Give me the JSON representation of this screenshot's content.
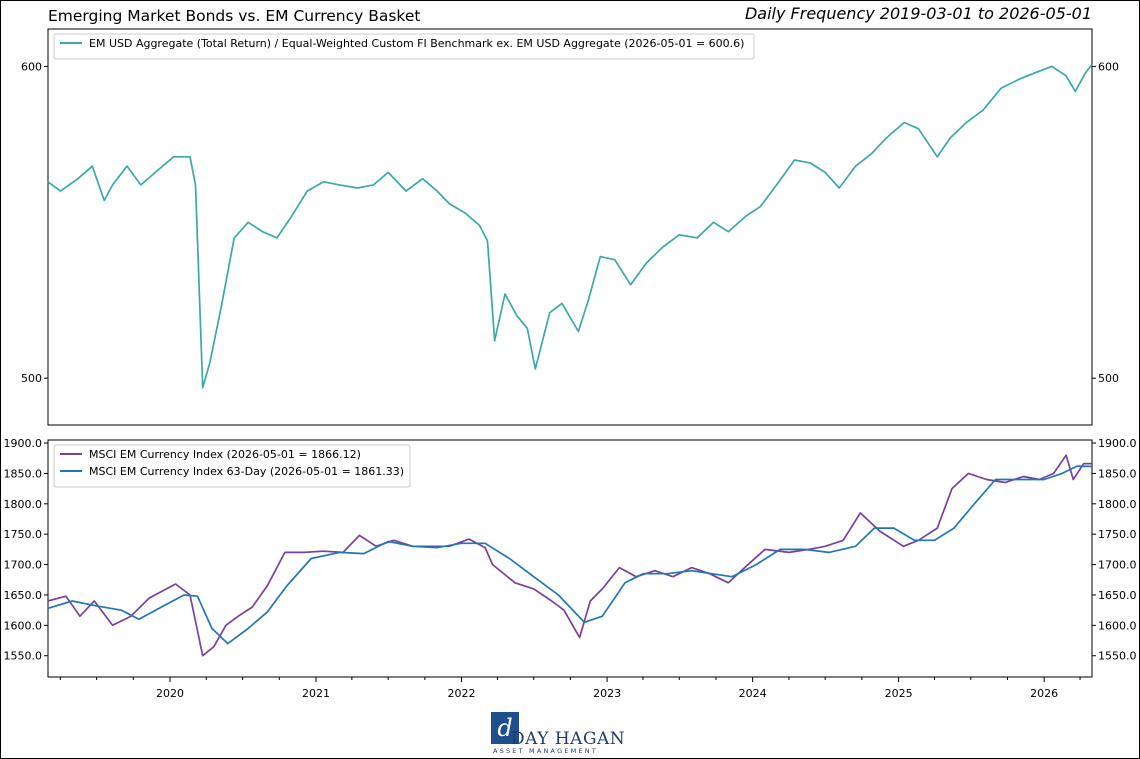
{
  "header": {
    "title": "Emerging Market Bonds vs. EM Currency Basket",
    "subtitle": "Daily Frequency 2019-03-01 to 2026-05-01"
  },
  "logo": {
    "mark": "d",
    "name": "DAY HAGAN",
    "tagline": "ASSET MANAGEMENT"
  },
  "chart_data": [
    {
      "type": "line",
      "panel": "top",
      "title": "",
      "xlabel": "",
      "ylabel": "",
      "xlim": [
        "2019-03-01",
        "2026-05-01"
      ],
      "ylim": [
        485,
        612
      ],
      "yticks": [
        500,
        600
      ],
      "ytick_labels": [
        "500",
        "600"
      ],
      "ytick_labels_right": true,
      "grid": false,
      "legend_position": "top-left",
      "series": [
        {
          "name": "EM USD Aggregate (Total Return) / Equal-Weighted Custom FI Benchmark ex. EM USD Aggregate (2026-05-01 = 600.6)",
          "color": "#3aa9a7",
          "x": [
            "2019-03-01",
            "2019-04-01",
            "2019-05-15",
            "2019-06-20",
            "2019-07-20",
            "2019-08-10",
            "2019-09-15",
            "2019-10-20",
            "2019-11-25",
            "2020-01-10",
            "2020-02-20",
            "2020-03-05",
            "2020-03-23",
            "2020-04-10",
            "2020-05-10",
            "2020-06-10",
            "2020-07-15",
            "2020-08-20",
            "2020-09-25",
            "2020-11-01",
            "2020-12-10",
            "2021-01-20",
            "2021-03-01",
            "2021-04-15",
            "2021-05-25",
            "2021-07-01",
            "2021-08-15",
            "2021-09-25",
            "2021-11-01",
            "2021-12-01",
            "2022-01-10",
            "2022-02-15",
            "2022-03-07",
            "2022-03-25",
            "2022-04-20",
            "2022-05-20",
            "2022-06-15",
            "2022-07-05",
            "2022-08-10",
            "2022-09-10",
            "2022-10-21",
            "2022-11-15",
            "2022-12-15",
            "2023-01-20",
            "2023-03-01",
            "2023-04-10",
            "2023-05-20",
            "2023-07-01",
            "2023-08-15",
            "2023-09-25",
            "2023-11-01",
            "2023-12-15",
            "2024-01-20",
            "2024-03-01",
            "2024-04-15",
            "2024-05-25",
            "2024-07-01",
            "2024-08-05",
            "2024-09-15",
            "2024-10-25",
            "2024-12-01",
            "2025-01-15",
            "2025-02-20",
            "2025-04-08",
            "2025-05-10",
            "2025-06-20",
            "2025-08-01",
            "2025-09-15",
            "2025-11-01",
            "2025-12-10",
            "2026-01-20",
            "2026-02-25",
            "2026-03-20",
            "2026-04-15",
            "2026-05-01"
          ],
          "values": [
            563,
            560,
            564,
            568,
            557,
            562,
            568,
            562,
            566,
            571,
            571,
            562,
            497,
            505,
            524,
            545,
            550,
            547,
            545,
            552,
            560,
            563,
            562,
            561,
            562,
            566,
            560,
            564,
            560,
            556,
            553,
            549,
            544,
            512,
            527,
            520,
            516,
            503,
            521,
            524,
            515,
            525,
            539,
            538,
            530,
            537,
            542,
            546,
            545,
            550,
            547,
            552,
            555,
            562,
            570,
            569,
            566,
            561,
            568,
            572,
            577,
            582,
            580,
            571,
            577,
            582,
            586,
            593,
            596,
            598,
            600,
            597,
            592,
            598,
            600.6
          ]
        }
      ]
    },
    {
      "type": "line",
      "panel": "bottom",
      "title": "",
      "xlabel": "",
      "ylabel": "",
      "xlim": [
        "2019-03-01",
        "2026-05-01"
      ],
      "ylim": [
        1515,
        1905
      ],
      "yticks": [
        1550,
        1600,
        1650,
        1700,
        1750,
        1800,
        1850,
        1900
      ],
      "ytick_labels": [
        "1550.0",
        "1600.0",
        "1650.0",
        "1700.0",
        "1750.0",
        "1800.0",
        "1850.0",
        "1900.0"
      ],
      "ytick_labels_right": true,
      "xticks": [
        "2020",
        "2021",
        "2022",
        "2023",
        "2024",
        "2025",
        "2026"
      ],
      "grid": false,
      "legend_position": "top-left",
      "series": [
        {
          "name": "MSCI EM Currency Index (2026-05-01 = 1866.12)",
          "color": "#7b3fa0",
          "x": [
            "2019-03-01",
            "2019-04-15",
            "2019-05-20",
            "2019-06-25",
            "2019-08-10",
            "2019-09-25",
            "2019-11-10",
            "2020-01-15",
            "2020-02-20",
            "2020-03-23",
            "2020-04-20",
            "2020-05-20",
            "2020-06-20",
            "2020-07-25",
            "2020-09-01",
            "2020-10-15",
            "2020-12-01",
            "2021-01-20",
            "2021-03-10",
            "2021-04-20",
            "2021-06-01",
            "2021-07-15",
            "2021-09-01",
            "2021-10-15",
            "2021-12-01",
            "2022-01-20",
            "2022-03-01",
            "2022-03-20",
            "2022-05-15",
            "2022-07-01",
            "2022-08-15",
            "2022-09-15",
            "2022-10-24",
            "2022-11-20",
            "2022-12-20",
            "2023-02-01",
            "2023-03-15",
            "2023-05-01",
            "2023-06-15",
            "2023-08-01",
            "2023-09-15",
            "2023-11-01",
            "2023-12-20",
            "2024-02-01",
            "2024-04-01",
            "2024-05-20",
            "2024-07-01",
            "2024-08-15",
            "2024-09-27",
            "2024-11-15",
            "2025-01-13",
            "2025-02-20",
            "2025-04-08",
            "2025-05-15",
            "2025-06-25",
            "2025-08-10",
            "2025-09-25",
            "2025-11-10",
            "2025-12-20",
            "2026-01-25",
            "2026-02-25",
            "2026-03-15",
            "2026-04-10",
            "2026-05-01"
          ],
          "values": [
            1640,
            1648,
            1615,
            1640,
            1600,
            1615,
            1645,
            1668,
            1650,
            1550,
            1565,
            1600,
            1615,
            1630,
            1665,
            1720,
            1720,
            1722,
            1720,
            1748,
            1730,
            1740,
            1730,
            1730,
            1730,
            1742,
            1728,
            1700,
            1670,
            1660,
            1640,
            1625,
            1580,
            1640,
            1660,
            1695,
            1680,
            1690,
            1680,
            1695,
            1685,
            1670,
            1700,
            1725,
            1720,
            1725,
            1730,
            1740,
            1785,
            1755,
            1730,
            1740,
            1760,
            1825,
            1850,
            1840,
            1835,
            1845,
            1840,
            1850,
            1880,
            1840,
            1866,
            1866.12
          ]
        },
        {
          "name": "MSCI EM Currency Index 63-Day (2026-05-01 = 1861.33)",
          "color": "#1f77b4",
          "x": [
            "2019-03-01",
            "2019-05-01",
            "2019-07-01",
            "2019-09-01",
            "2019-10-15",
            "2019-12-10",
            "2020-02-05",
            "2020-03-10",
            "2020-04-15",
            "2020-05-25",
            "2020-07-15",
            "2020-09-01",
            "2020-10-20",
            "2020-12-20",
            "2021-03-01",
            "2021-05-01",
            "2021-07-01",
            "2021-09-01",
            "2021-11-01",
            "2022-01-01",
            "2022-03-01",
            "2022-05-01",
            "2022-07-01",
            "2022-09-01",
            "2022-11-05",
            "2022-12-20",
            "2023-02-15",
            "2023-04-01",
            "2023-06-01",
            "2023-08-01",
            "2023-09-20",
            "2023-11-10",
            "2024-01-10",
            "2024-03-10",
            "2024-05-10",
            "2024-07-10",
            "2024-09-15",
            "2024-11-01",
            "2024-12-20",
            "2025-02-10",
            "2025-04-01",
            "2025-05-20",
            "2025-07-10",
            "2025-09-01",
            "2025-11-01",
            "2026-01-01",
            "2026-02-15",
            "2026-03-25",
            "2026-05-01"
          ],
          "values": [
            1628,
            1640,
            1632,
            1625,
            1610,
            1630,
            1650,
            1648,
            1595,
            1570,
            1595,
            1622,
            1665,
            1710,
            1720,
            1718,
            1738,
            1730,
            1728,
            1735,
            1735,
            1710,
            1680,
            1650,
            1605,
            1615,
            1670,
            1685,
            1685,
            1690,
            1685,
            1680,
            1700,
            1725,
            1725,
            1720,
            1730,
            1760,
            1760,
            1740,
            1740,
            1760,
            1800,
            1840,
            1840,
            1840,
            1850,
            1862,
            1861.33
          ]
        }
      ]
    }
  ]
}
